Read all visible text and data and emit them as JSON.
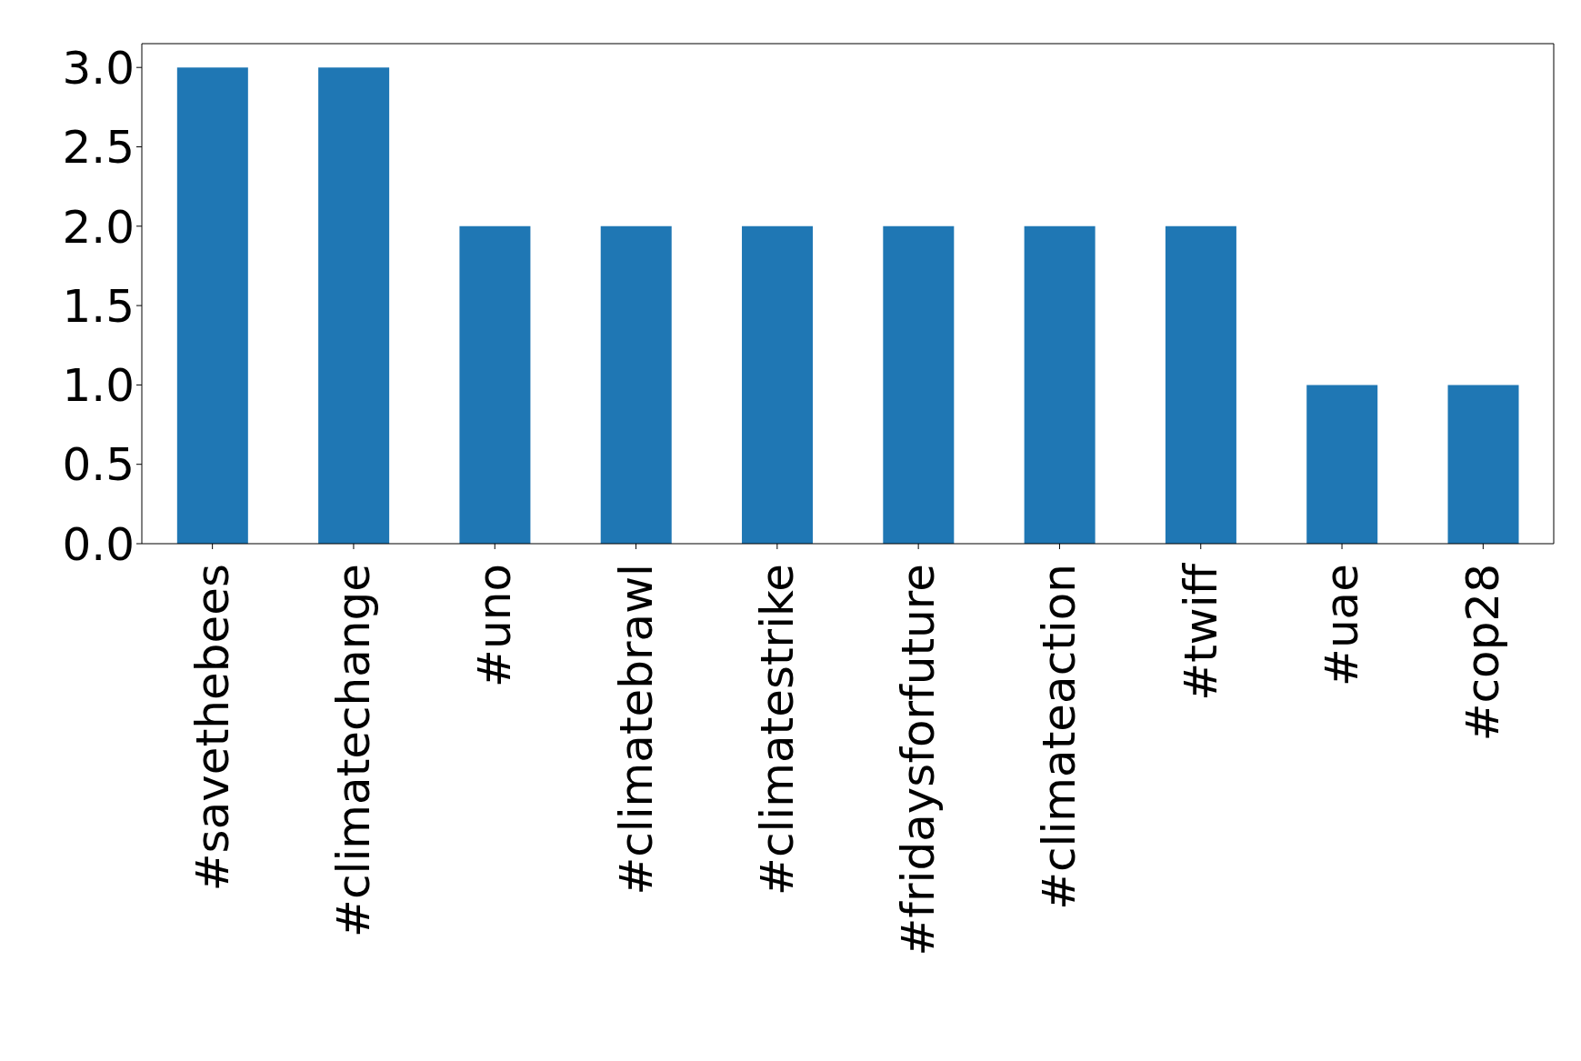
{
  "chart_data": {
    "type": "bar",
    "categories": [
      "#savethebees",
      "#climatechange",
      "#uno",
      "#climatebrawl",
      "#climatestrike",
      "#fridaysforfuture",
      "#climateaction",
      "#twiff",
      "#uae",
      "#cop28"
    ],
    "values": [
      3,
      3,
      2,
      2,
      2,
      2,
      2,
      2,
      1,
      1
    ],
    "color": "#1f77b4",
    "ylim": [
      0,
      3.15
    ],
    "yticks": [
      {
        "value": 0,
        "label": "0.0"
      },
      {
        "value": 0.5,
        "label": "0.5"
      },
      {
        "value": 1,
        "label": "1.0"
      },
      {
        "value": 1.5,
        "label": "1.5"
      },
      {
        "value": 2,
        "label": "2.0"
      },
      {
        "value": 2.5,
        "label": "2.5"
      },
      {
        "value": 3,
        "label": "3.0"
      }
    ],
    "grid": false
  }
}
